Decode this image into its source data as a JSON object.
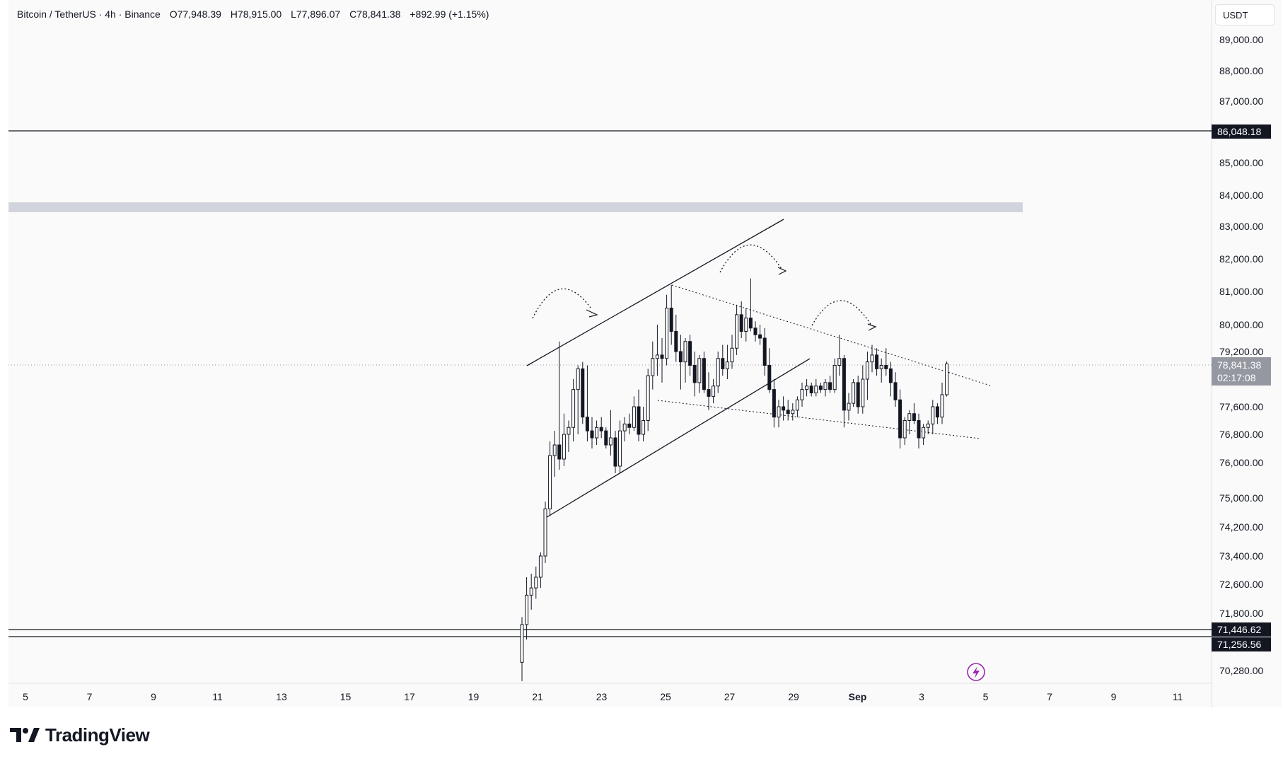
{
  "header": {
    "symbol": "Bitcoin / TetherUS · 4h · Binance",
    "open": "O77,948.39",
    "high": "H78,915.00",
    "low": "L77,896.07",
    "close": "C78,841.38",
    "change": "+892.99 (+1.15%)"
  },
  "currency": "USDT",
  "brand": "TradingView",
  "colors": {
    "candle": "#131722",
    "background": "#fafafa",
    "zone": "#d1d4dc",
    "alert": "#9c27b0"
  },
  "icons": {
    "logo": "tradingview-logo-icon",
    "alert": "lightning-alert-icon"
  },
  "price_tags": {
    "resistance": "86,048.18",
    "support_upper": "71,446.62",
    "support_lower": "71,256.56",
    "current_price": "78,841.38",
    "countdown": "02:17:08"
  },
  "chart_data": {
    "type": "candlestick",
    "x_axis_labels": [
      "5",
      "7",
      "9",
      "11",
      "13",
      "15",
      "17",
      "19",
      "21",
      "23",
      "25",
      "27",
      "29",
      "Sep",
      "3",
      "5",
      "7",
      "9",
      "11"
    ],
    "y_axis_labels": [
      "89,000.00",
      "88,000.00",
      "87,000.00",
      "85,000.00",
      "84,000.00",
      "83,000.00",
      "82,000.00",
      "81,000.00",
      "80,000.00",
      "79,200.00",
      "77,600.00",
      "76,800.00",
      "76,000.00",
      "75,000.00",
      "74,200.00",
      "73,400.00",
      "72,600.00",
      "71,800.00",
      "70,280.00"
    ],
    "horizontal_lines": [
      86048.18,
      71446.62,
      71256.56
    ],
    "resistance_zone": [
      83700,
      84000
    ],
    "last_price": 78841.38,
    "candles": [
      {
        "o": 70500,
        "h": 71700,
        "l": 70000,
        "c": 71500
      },
      {
        "o": 71500,
        "h": 72800,
        "l": 71100,
        "c": 72300
      },
      {
        "o": 72300,
        "h": 72900,
        "l": 71900,
        "c": 72500
      },
      {
        "o": 72500,
        "h": 73100,
        "l": 72200,
        "c": 72800
      },
      {
        "o": 72800,
        "h": 73500,
        "l": 72500,
        "c": 73400
      },
      {
        "o": 73400,
        "h": 74900,
        "l": 73200,
        "c": 74700
      },
      {
        "o": 74700,
        "h": 76600,
        "l": 74500,
        "c": 76200
      },
      {
        "o": 76200,
        "h": 76900,
        "l": 75600,
        "c": 76500
      },
      {
        "o": 76500,
        "h": 79500,
        "l": 75800,
        "c": 76100
      },
      {
        "o": 76100,
        "h": 77400,
        "l": 75900,
        "c": 76800
      },
      {
        "o": 76800,
        "h": 77200,
        "l": 76300,
        "c": 77000
      },
      {
        "o": 77000,
        "h": 78400,
        "l": 76600,
        "c": 78100
      },
      {
        "o": 78100,
        "h": 78800,
        "l": 76800,
        "c": 78700
      },
      {
        "o": 78700,
        "h": 78900,
        "l": 77100,
        "c": 77300
      },
      {
        "o": 77300,
        "h": 78800,
        "l": 76600,
        "c": 76900
      },
      {
        "o": 76900,
        "h": 77300,
        "l": 76400,
        "c": 76700
      },
      {
        "o": 76700,
        "h": 77200,
        "l": 76500,
        "c": 77000
      },
      {
        "o": 77000,
        "h": 77300,
        "l": 76700,
        "c": 76900
      },
      {
        "o": 76900,
        "h": 77000,
        "l": 76400,
        "c": 76500
      },
      {
        "o": 76500,
        "h": 77500,
        "l": 76200,
        "c": 76700
      },
      {
        "o": 76700,
        "h": 76900,
        "l": 75700,
        "c": 75900
      },
      {
        "o": 75900,
        "h": 77200,
        "l": 75700,
        "c": 76900
      },
      {
        "o": 76900,
        "h": 77300,
        "l": 76600,
        "c": 77100
      },
      {
        "o": 77100,
        "h": 77400,
        "l": 76800,
        "c": 77000
      },
      {
        "o": 77000,
        "h": 77900,
        "l": 76900,
        "c": 77600
      },
      {
        "o": 77600,
        "h": 78100,
        "l": 76600,
        "c": 76800
      },
      {
        "o": 76800,
        "h": 77600,
        "l": 76600,
        "c": 77200
      },
      {
        "o": 77200,
        "h": 78700,
        "l": 76900,
        "c": 78500
      },
      {
        "o": 78500,
        "h": 79500,
        "l": 78100,
        "c": 79000
      },
      {
        "o": 79000,
        "h": 80000,
        "l": 78500,
        "c": 79100
      },
      {
        "o": 79100,
        "h": 79600,
        "l": 78300,
        "c": 79000
      },
      {
        "o": 79000,
        "h": 80900,
        "l": 78800,
        "c": 80500
      },
      {
        "o": 80500,
        "h": 81200,
        "l": 79400,
        "c": 79800
      },
      {
        "o": 79800,
        "h": 80300,
        "l": 78900,
        "c": 79200
      },
      {
        "o": 79200,
        "h": 79700,
        "l": 78100,
        "c": 78900
      },
      {
        "o": 78900,
        "h": 79600,
        "l": 78300,
        "c": 79500
      },
      {
        "o": 79500,
        "h": 79700,
        "l": 78500,
        "c": 78800
      },
      {
        "o": 78800,
        "h": 79200,
        "l": 77900,
        "c": 78300
      },
      {
        "o": 78300,
        "h": 79100,
        "l": 78000,
        "c": 79000
      },
      {
        "o": 79000,
        "h": 79200,
        "l": 78000,
        "c": 78100
      },
      {
        "o": 78100,
        "h": 78600,
        "l": 77500,
        "c": 77900
      },
      {
        "o": 77900,
        "h": 78400,
        "l": 77700,
        "c": 78200
      },
      {
        "o": 78200,
        "h": 79200,
        "l": 78000,
        "c": 79000
      },
      {
        "o": 79000,
        "h": 79400,
        "l": 78500,
        "c": 78700
      },
      {
        "o": 78700,
        "h": 79400,
        "l": 78400,
        "c": 78900
      },
      {
        "o": 78900,
        "h": 79700,
        "l": 78700,
        "c": 79300
      },
      {
        "o": 79300,
        "h": 80600,
        "l": 79100,
        "c": 80300
      },
      {
        "o": 80300,
        "h": 80700,
        "l": 79600,
        "c": 79800
      },
      {
        "o": 79800,
        "h": 80500,
        "l": 79500,
        "c": 80200
      },
      {
        "o": 80200,
        "h": 81400,
        "l": 79800,
        "c": 79900
      },
      {
        "o": 79900,
        "h": 80100,
        "l": 79500,
        "c": 79700
      },
      {
        "o": 79700,
        "h": 80000,
        "l": 79400,
        "c": 79600
      },
      {
        "o": 79600,
        "h": 79900,
        "l": 78500,
        "c": 78800
      },
      {
        "o": 78800,
        "h": 79300,
        "l": 78000,
        "c": 78100
      },
      {
        "o": 78100,
        "h": 78400,
        "l": 77000,
        "c": 77300
      },
      {
        "o": 77300,
        "h": 77800,
        "l": 77000,
        "c": 77600
      },
      {
        "o": 77600,
        "h": 77900,
        "l": 77200,
        "c": 77500
      },
      {
        "o": 77500,
        "h": 77800,
        "l": 77200,
        "c": 77400
      },
      {
        "o": 77400,
        "h": 77700,
        "l": 77200,
        "c": 77500
      },
      {
        "o": 77500,
        "h": 77900,
        "l": 77300,
        "c": 77800
      },
      {
        "o": 77800,
        "h": 78300,
        "l": 77600,
        "c": 78100
      },
      {
        "o": 78100,
        "h": 78400,
        "l": 77900,
        "c": 78200
      },
      {
        "o": 78200,
        "h": 78300,
        "l": 77900,
        "c": 78000
      },
      {
        "o": 78000,
        "h": 78400,
        "l": 77900,
        "c": 78200
      },
      {
        "o": 78200,
        "h": 78300,
        "l": 78000,
        "c": 78100
      },
      {
        "o": 78100,
        "h": 78400,
        "l": 77900,
        "c": 78300
      },
      {
        "o": 78300,
        "h": 78500,
        "l": 78000,
        "c": 78100
      },
      {
        "o": 78100,
        "h": 79000,
        "l": 78000,
        "c": 78800
      },
      {
        "o": 78800,
        "h": 79700,
        "l": 78500,
        "c": 79000
      },
      {
        "o": 79000,
        "h": 79100,
        "l": 77000,
        "c": 77500
      },
      {
        "o": 77500,
        "h": 78000,
        "l": 77200,
        "c": 77700
      },
      {
        "o": 77700,
        "h": 78400,
        "l": 77600,
        "c": 78300
      },
      {
        "o": 78300,
        "h": 78500,
        "l": 77400,
        "c": 77600
      },
      {
        "o": 77600,
        "h": 78800,
        "l": 77400,
        "c": 78400
      },
      {
        "o": 78400,
        "h": 79200,
        "l": 77800,
        "c": 78900
      },
      {
        "o": 78900,
        "h": 79400,
        "l": 78600,
        "c": 79100
      },
      {
        "o": 79100,
        "h": 79300,
        "l": 78500,
        "c": 78700
      },
      {
        "o": 78700,
        "h": 79000,
        "l": 78300,
        "c": 78800
      },
      {
        "o": 78800,
        "h": 79300,
        "l": 78500,
        "c": 78700
      },
      {
        "o": 78700,
        "h": 78900,
        "l": 77900,
        "c": 78300
      },
      {
        "o": 78300,
        "h": 78600,
        "l": 77600,
        "c": 77800
      },
      {
        "o": 77800,
        "h": 78100,
        "l": 76400,
        "c": 76700
      },
      {
        "o": 76700,
        "h": 77300,
        "l": 76500,
        "c": 77200
      },
      {
        "o": 77200,
        "h": 77500,
        "l": 76800,
        "c": 77400
      },
      {
        "o": 77400,
        "h": 77700,
        "l": 77100,
        "c": 77200
      },
      {
        "o": 77200,
        "h": 77400,
        "l": 76400,
        "c": 76700
      },
      {
        "o": 76700,
        "h": 77100,
        "l": 76500,
        "c": 77000
      },
      {
        "o": 77000,
        "h": 77200,
        "l": 76800,
        "c": 77100
      },
      {
        "o": 77100,
        "h": 77800,
        "l": 76800,
        "c": 77600
      },
      {
        "o": 77600,
        "h": 77700,
        "l": 77100,
        "c": 77300
      },
      {
        "o": 77300,
        "h": 78300,
        "l": 77100,
        "c": 77948.39
      },
      {
        "o": 77948.39,
        "h": 78915,
        "l": 77896.07,
        "c": 78841.38
      }
    ]
  }
}
